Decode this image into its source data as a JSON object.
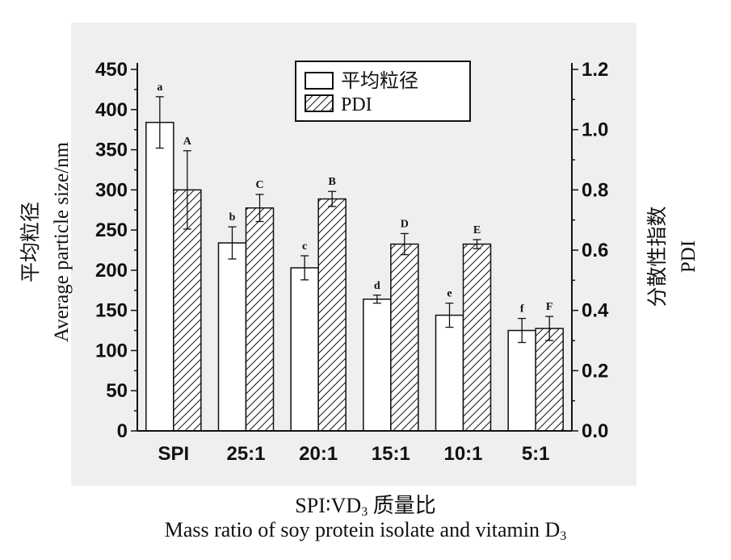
{
  "chart_data": {
    "type": "bar",
    "categories": [
      "SPI",
      "25:1",
      "20:1",
      "15:1",
      "10:1",
      "5:1"
    ],
    "series": [
      {
        "name": "平均粒径",
        "axis": "left",
        "values": [
          384,
          234,
          203,
          164,
          144,
          125
        ],
        "errors": [
          32,
          20,
          15,
          5,
          15,
          15
        ],
        "letters": [
          "a",
          "b",
          "c",
          "d",
          "e",
          "f"
        ]
      },
      {
        "name": "PDI",
        "axis": "right",
        "values": [
          0.8,
          0.74,
          0.77,
          0.62,
          0.62,
          0.34
        ],
        "errors": [
          0.13,
          0.045,
          0.025,
          0.035,
          0.015,
          0.04
        ],
        "letters": [
          "A",
          "C",
          "B",
          "D",
          "E",
          "F"
        ]
      }
    ],
    "ylabel_cn": "平均粒径",
    "ylabel_en": "Average particle size/nm",
    "y2label_cn": "分散性指数",
    "y2label_en": "PDI",
    "xlabel_cn_prefix": "SPI∶VD",
    "xlabel_cn_sub": "3",
    "xlabel_cn_suffix": " 质量比",
    "xlabel_en_prefix": "Mass ratio of soy protein isolate and vitamin D",
    "xlabel_en_sub": "3",
    "ylim": [
      0,
      450
    ],
    "y2lim": [
      0,
      1.2
    ],
    "yticks": [
      "0",
      "50",
      "100",
      "150",
      "200",
      "250",
      "300",
      "350",
      "400",
      "450"
    ],
    "y2ticks": [
      "0.0",
      "0.2",
      "0.4",
      "0.6",
      "0.8",
      "1.0",
      "1.2"
    ],
    "legend_position": "top-center",
    "grid": false,
    "colors": {
      "bar1_fill": "#ffffff",
      "bar2_hatch": "#111111",
      "axis": "#111111",
      "panel": "#efefef"
    }
  }
}
